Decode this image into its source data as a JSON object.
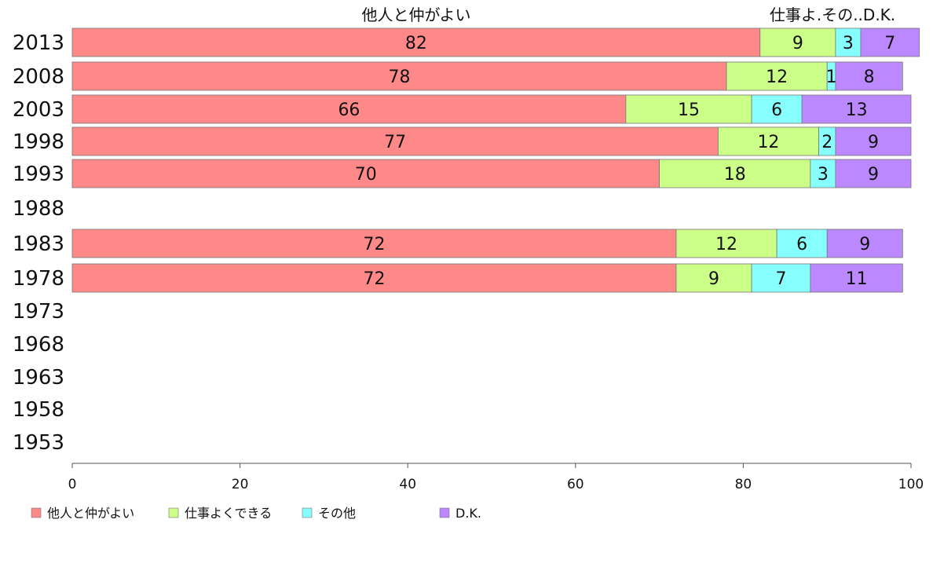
{
  "chart_data": {
    "type": "bar",
    "orientation": "horizontal",
    "stacked": true,
    "column_headers": {
      "left": "他人と仲がよい",
      "right": "仕事よ.その..D.K."
    },
    "categories": [
      "2013",
      "2008",
      "2003",
      "1998",
      "1993",
      "1988",
      "1983",
      "1978",
      "1973",
      "1968",
      "1963",
      "1958",
      "1953"
    ],
    "series": [
      {
        "name": "他人と仲がよい",
        "color": "#ff8888",
        "values": [
          82,
          78,
          66,
          77,
          70,
          null,
          72,
          72,
          null,
          null,
          null,
          null,
          null
        ]
      },
      {
        "name": "仕事よくできる",
        "color": "#ccff88",
        "values": [
          9,
          12,
          15,
          12,
          18,
          null,
          12,
          9,
          null,
          null,
          null,
          null,
          null
        ]
      },
      {
        "name": "その他",
        "color": "#88ffff",
        "values": [
          3,
          1,
          6,
          2,
          3,
          null,
          6,
          7,
          null,
          null,
          null,
          null,
          null
        ]
      },
      {
        "name": "D.K.",
        "color": "#bb88ff",
        "values": [
          7,
          8,
          13,
          9,
          9,
          null,
          9,
          11,
          null,
          null,
          null,
          null,
          null
        ]
      }
    ],
    "xlim": [
      0,
      100
    ],
    "xticks": [
      "0",
      "20",
      "40",
      "60",
      "80",
      "100"
    ],
    "grid": false,
    "legend_position": "bottom"
  }
}
